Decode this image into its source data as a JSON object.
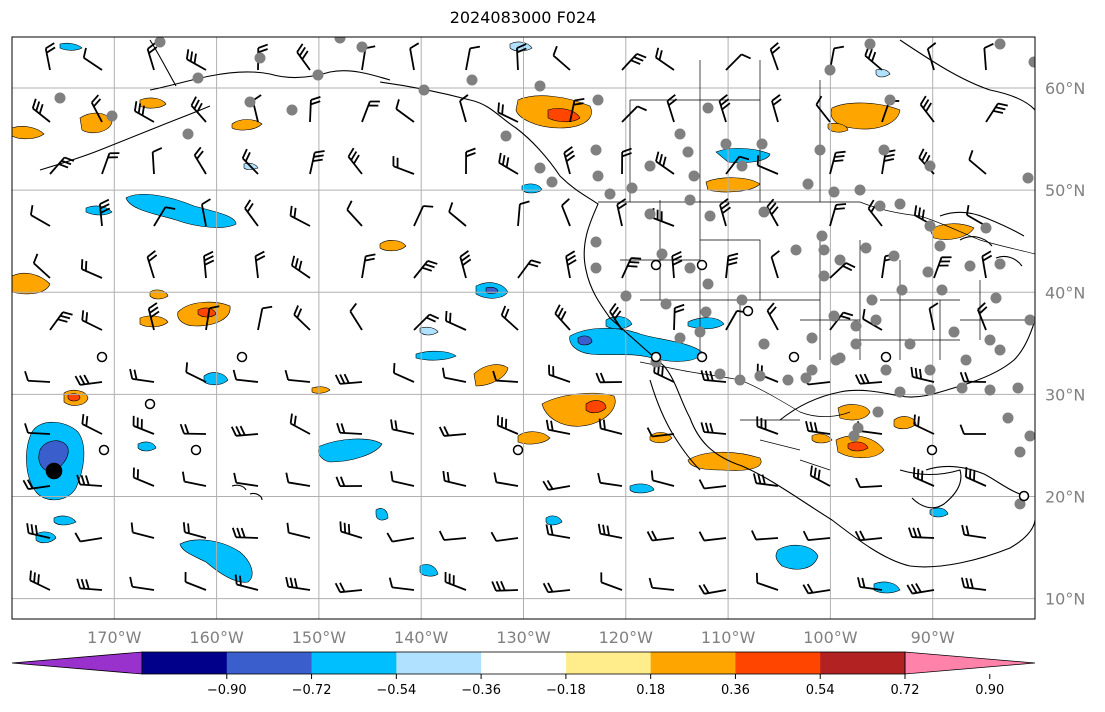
{
  "title": "2024083000 F024",
  "map": {
    "lon_range": [
      -180,
      -80
    ],
    "lat_range": [
      8,
      65
    ],
    "lon_ticks": [
      {
        "lon": -170,
        "label": "170°W"
      },
      {
        "lon": -160,
        "label": "160°W"
      },
      {
        "lon": -150,
        "label": "150°W"
      },
      {
        "lon": -140,
        "label": "140°W"
      },
      {
        "lon": -130,
        "label": "130°W"
      },
      {
        "lon": -120,
        "label": "120°W"
      },
      {
        "lon": -110,
        "label": "110°W"
      },
      {
        "lon": -100,
        "label": "100°W"
      },
      {
        "lon": -90,
        "label": "90°W"
      }
    ],
    "lat_ticks": [
      {
        "lat": 60,
        "label": "60°N"
      },
      {
        "lat": 50,
        "label": "50°N"
      },
      {
        "lat": 40,
        "label": "40°N"
      },
      {
        "lat": 30,
        "label": "30°N"
      },
      {
        "lat": 20,
        "label": "20°N"
      },
      {
        "lat": 10,
        "label": "10°N"
      }
    ],
    "grid_color": "#b0b0b0",
    "coast_color": "#000000",
    "station_color": "#808080"
  },
  "colorbar": {
    "colors": [
      "#9932cc",
      "#00008b",
      "#3a5fcd",
      "#00bfff",
      "#b0e2ff",
      "#ffffff",
      "#ffec8b",
      "#ffa500",
      "#ff4500",
      "#b22222",
      "#ff82ab"
    ],
    "tick_labels": [
      "−0.90",
      "−0.72",
      "−0.54",
      "−0.36",
      "−0.18",
      "0.18",
      "0.36",
      "0.54",
      "0.72",
      "0.90"
    ]
  }
}
